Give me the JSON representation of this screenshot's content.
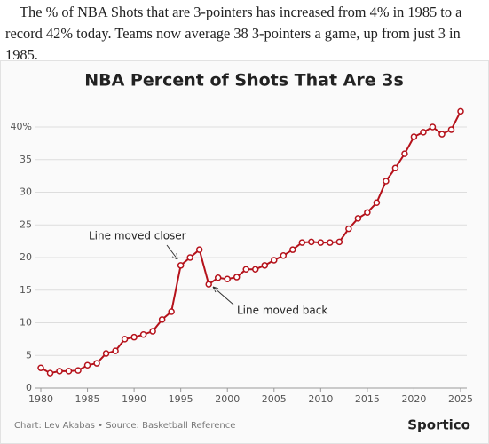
{
  "intro": "The % of NBA Shots that are 3-pointers has increased from 4% in 1985 to a record 42% today. Teams now average 38 3-pointers a game, up from just 3 in 1985.",
  "chart_data": {
    "type": "line",
    "title": "NBA Percent of Shots That Are 3s",
    "x": [
      1980,
      1981,
      1982,
      1983,
      1984,
      1985,
      1986,
      1987,
      1988,
      1989,
      1990,
      1991,
      1992,
      1993,
      1994,
      1995,
      1996,
      1997,
      1998,
      1999,
      2000,
      2001,
      2002,
      2003,
      2004,
      2005,
      2006,
      2007,
      2008,
      2009,
      2010,
      2011,
      2012,
      2013,
      2014,
      2015,
      2016,
      2017,
      2018,
      2019,
      2020,
      2021,
      2022,
      2023,
      2024,
      2025
    ],
    "series": [
      {
        "color": "#b5121b",
        "values": [
          3.1,
          2.3,
          2.6,
          2.6,
          2.7,
          3.5,
          3.8,
          5.3,
          5.7,
          7.5,
          7.8,
          8.2,
          8.7,
          10.5,
          11.7,
          18.8,
          20.0,
          21.2,
          15.9,
          16.9,
          16.7,
          17.0,
          18.2,
          18.2,
          18.8,
          19.6,
          20.3,
          21.2,
          22.3,
          22.4,
          22.3,
          22.3,
          22.4,
          24.4,
          26.0,
          26.9,
          28.4,
          31.7,
          33.7,
          35.9,
          38.5,
          39.2,
          40.0,
          38.9,
          39.6,
          42.4
        ]
      }
    ],
    "xlim": [
      1980,
      2025
    ],
    "xticks": [
      1980,
      1985,
      1990,
      1995,
      2000,
      2005,
      2010,
      2015,
      2020,
      2025
    ],
    "ylim": [
      0,
      44
    ],
    "yticks": [
      0,
      5,
      10,
      15,
      20,
      25,
      30,
      35,
      {
        "value": 40,
        "label": "40%"
      }
    ],
    "grid": true,
    "annotations": [
      {
        "text": "Line moved closer"
      },
      {
        "text": "Line moved back"
      }
    ],
    "source": "Chart: Lev Akabas • Source: Basketball Reference",
    "brand": "Sportico"
  }
}
